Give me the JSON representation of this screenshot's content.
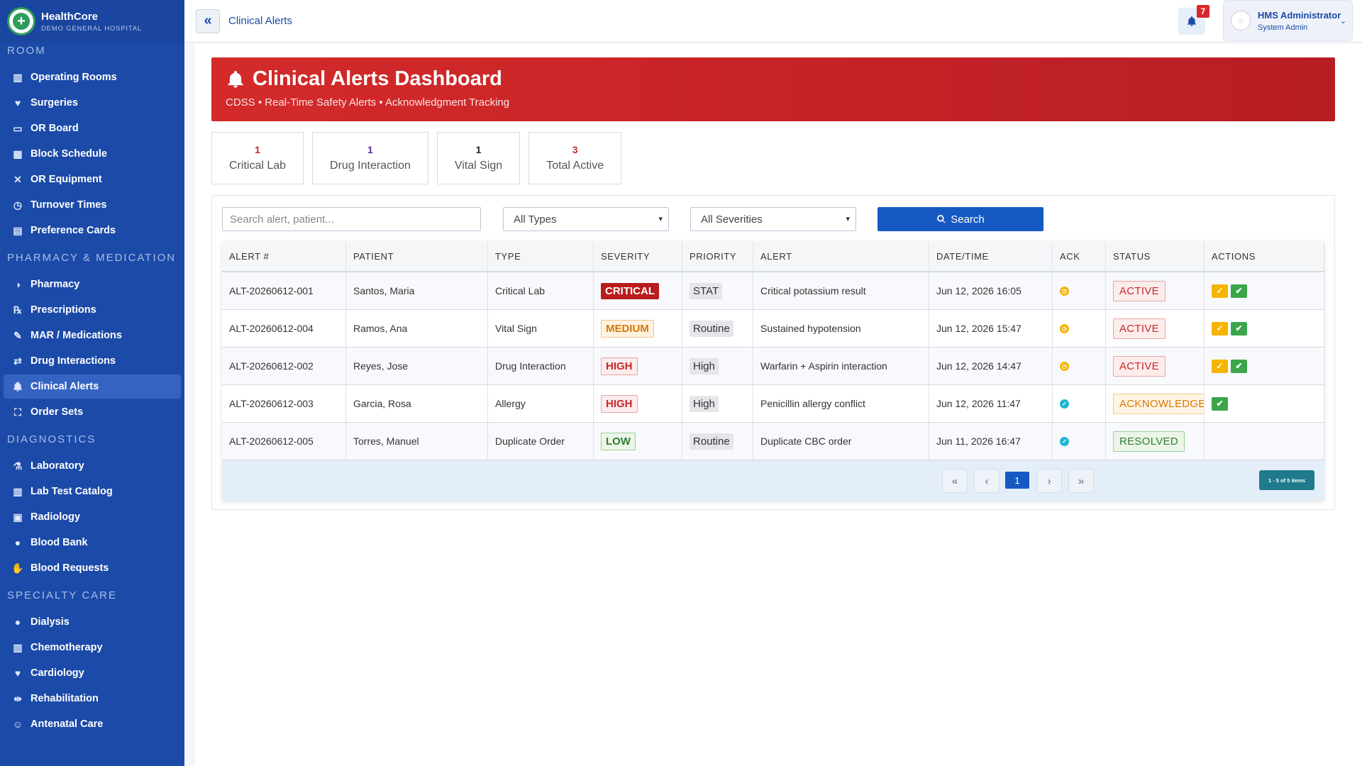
{
  "brand": {
    "name": "HealthCore",
    "subtitle": "DEMO GENERAL HOSPITAL"
  },
  "sidebar": {
    "sections": [
      {
        "title": "ROOM",
        "items": [
          {
            "label": "Operating Rooms",
            "icon": "building-icon"
          },
          {
            "label": "Surgeries",
            "icon": "heartbeat-icon"
          },
          {
            "label": "OR Board",
            "icon": "monitor-icon"
          },
          {
            "label": "Block Schedule",
            "icon": "calendar-icon"
          },
          {
            "label": "OR Equipment",
            "icon": "tools-icon"
          },
          {
            "label": "Turnover Times",
            "icon": "stopwatch-icon"
          },
          {
            "label": "Preference Cards",
            "icon": "card-icon"
          }
        ]
      },
      {
        "title": "PHARMACY & MEDICATION",
        "items": [
          {
            "label": "Pharmacy",
            "icon": "pills-icon"
          },
          {
            "label": "Prescriptions",
            "icon": "prescription-icon"
          },
          {
            "label": "MAR / Medications",
            "icon": "syringe-icon"
          },
          {
            "label": "Drug Interactions",
            "icon": "exchange-icon"
          },
          {
            "label": "Clinical Alerts",
            "icon": "bell-icon",
            "active": true
          },
          {
            "label": "Order Sets",
            "icon": "sitemap-icon"
          }
        ]
      },
      {
        "title": "DIAGNOSTICS",
        "items": [
          {
            "label": "Laboratory",
            "icon": "flask-icon"
          },
          {
            "label": "Lab Test Catalog",
            "icon": "vials-icon"
          },
          {
            "label": "Radiology",
            "icon": "xray-icon"
          },
          {
            "label": "Blood Bank",
            "icon": "droplet-icon"
          },
          {
            "label": "Blood Requests",
            "icon": "hand-droplet-icon"
          }
        ]
      },
      {
        "title": "SPECIALTY CARE",
        "items": [
          {
            "label": "Dialysis",
            "icon": "droplet-icon"
          },
          {
            "label": "Chemotherapy",
            "icon": "vials-icon"
          },
          {
            "label": "Cardiology",
            "icon": "heartbeat-icon"
          },
          {
            "label": "Rehabilitation",
            "icon": "dumbbell-icon"
          },
          {
            "label": "Antenatal Care",
            "icon": "person-icon"
          }
        ]
      }
    ]
  },
  "topbar": {
    "breadcrumb": "Clinical Alerts",
    "notification_count": "7",
    "user_name": "HMS Administrator",
    "user_role": "System Admin"
  },
  "hero": {
    "title": "Clinical Alerts Dashboard",
    "subtitle": "CDSS • Real-Time Safety Alerts • Acknowledgment Tracking"
  },
  "stats": [
    {
      "value": "1",
      "label": "Critical Lab",
      "color": "#c62828"
    },
    {
      "value": "1",
      "label": "Drug Interaction",
      "color": "#5b2a86"
    },
    {
      "value": "1",
      "label": "Vital Sign",
      "color": "#222222"
    },
    {
      "value": "3",
      "label": "Total Active",
      "color": "#c62828"
    }
  ],
  "filters": {
    "search_placeholder": "Search alert, patient...",
    "type_select": "All Types",
    "severity_select": "All Severities",
    "search_button": "Search"
  },
  "table": {
    "columns": [
      "ALERT #",
      "PATIENT",
      "TYPE",
      "SEVERITY",
      "PRIORITY",
      "ALERT",
      "DATE/TIME",
      "ACK",
      "STATUS",
      "ACTIONS"
    ],
    "rows": [
      {
        "id": "ALT-20260612-001",
        "patient": "Santos, Maria",
        "type": "Critical Lab",
        "severity": "CRITICAL",
        "severity_class": "sev-critical",
        "priority": "STAT",
        "alert": "Critical potassium result",
        "datetime": "Jun 12, 2026 16:05",
        "ack": "pending",
        "status": "ACTIVE",
        "status_class": "st-active",
        "actions": [
          "acknowledge",
          "resolve"
        ]
      },
      {
        "id": "ALT-20260612-004",
        "patient": "Ramos, Ana",
        "type": "Vital Sign",
        "severity": "MEDIUM",
        "severity_class": "sev-medium",
        "priority": "Routine",
        "alert": "Sustained hypotension",
        "datetime": "Jun 12, 2026 15:47",
        "ack": "pending",
        "status": "ACTIVE",
        "status_class": "st-active",
        "actions": [
          "acknowledge",
          "resolve"
        ]
      },
      {
        "id": "ALT-20260612-002",
        "patient": "Reyes, Jose",
        "type": "Drug Interaction",
        "severity": "HIGH",
        "severity_class": "sev-high",
        "priority": "High",
        "alert": "Warfarin + Aspirin interaction",
        "datetime": "Jun 12, 2026 14:47",
        "ack": "pending",
        "status": "ACTIVE",
        "status_class": "st-active",
        "actions": [
          "acknowledge",
          "resolve"
        ]
      },
      {
        "id": "ALT-20260612-003",
        "patient": "Garcia, Rosa",
        "type": "Allergy",
        "severity": "HIGH",
        "severity_class": "sev-high",
        "priority": "High",
        "alert": "Penicillin allergy conflict",
        "datetime": "Jun 12, 2026 11:47",
        "ack": "done",
        "status": "ACKNOWLEDGED",
        "status_class": "st-ack",
        "actions": [
          "resolve"
        ]
      },
      {
        "id": "ALT-20260612-005",
        "patient": "Torres, Manuel",
        "type": "Duplicate Order",
        "severity": "LOW",
        "severity_class": "sev-low",
        "priority": "Routine",
        "alert": "Duplicate CBC order",
        "datetime": "Jun 11, 2026 16:47",
        "ack": "done",
        "status": "RESOLVED",
        "status_class": "st-resolved",
        "actions": []
      }
    ]
  },
  "pager": {
    "first": "«",
    "prev": "‹",
    "current": "1",
    "next": "›",
    "last": "»",
    "info": "1 - 5 of 5 items"
  }
}
